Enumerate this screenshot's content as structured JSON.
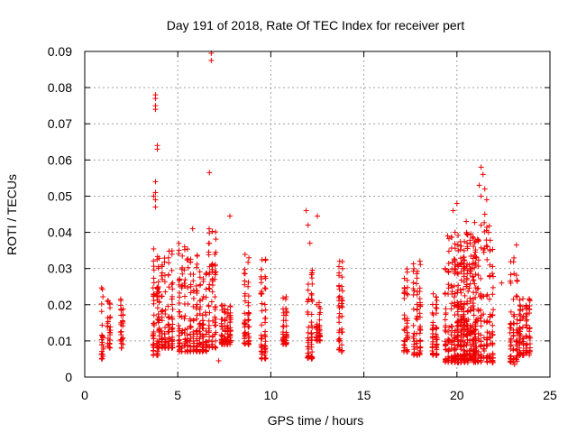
{
  "chart_data": {
    "type": "scatter",
    "title": "Day 191 of 2018, Rate Of TEC Index for receiver pert",
    "xlabel": "GPS time / hours",
    "ylabel": "ROTI / TECUs",
    "xlim": [
      0,
      25
    ],
    "ylim": [
      0,
      0.09
    ],
    "xticks": [
      0,
      5,
      10,
      15,
      20,
      25
    ],
    "yticks": [
      0,
      0.01,
      0.02,
      0.03,
      0.04,
      0.05,
      0.06,
      0.07,
      0.08,
      0.09
    ],
    "xtick_labels": [
      "0",
      "5",
      "10",
      "15",
      "20",
      "25"
    ],
    "ytick_labels": [
      "0",
      "0.01",
      "0.02",
      "0.03",
      "0.04",
      "0.05",
      "0.06",
      "0.07",
      "0.08",
      "0.09"
    ],
    "grid": true,
    "marker": "+",
    "color": "#ee0000",
    "clusters": [
      {
        "x": [
          0.9,
          1.0
        ],
        "y": [
          0.005,
          0.027
        ]
      },
      {
        "x": [
          1.2,
          1.4
        ],
        "y": [
          0.008,
          0.023
        ]
      },
      {
        "x": [
          1.9,
          2.1
        ],
        "y": [
          0.008,
          0.023
        ]
      },
      {
        "x": [
          3.6,
          4.0
        ],
        "y": [
          0.006,
          0.036
        ]
      },
      {
        "x": [
          3.9,
          4.4
        ],
        "y": [
          0.008,
          0.033
        ]
      },
      {
        "x": [
          4.4,
          4.8
        ],
        "y": [
          0.008,
          0.036
        ]
      },
      {
        "x": [
          5.0,
          5.6
        ],
        "y": [
          0.007,
          0.038
        ]
      },
      {
        "x": [
          5.6,
          6.1
        ],
        "y": [
          0.007,
          0.035
        ]
      },
      {
        "x": [
          6.1,
          6.6
        ],
        "y": [
          0.007,
          0.03
        ]
      },
      {
        "x": [
          6.6,
          7.1
        ],
        "y": [
          0.008,
          0.042
        ]
      },
      {
        "x": [
          7.3,
          7.9
        ],
        "y": [
          0.009,
          0.02
        ]
      },
      {
        "x": [
          8.5,
          8.9
        ],
        "y": [
          0.009,
          0.034
        ]
      },
      {
        "x": [
          9.4,
          9.8
        ],
        "y": [
          0.005,
          0.033
        ]
      },
      {
        "x": [
          10.6,
          10.9
        ],
        "y": [
          0.009,
          0.023
        ]
      },
      {
        "x": [
          11.9,
          12.3
        ],
        "y": [
          0.005,
          0.03
        ]
      },
      {
        "x": [
          12.4,
          12.7
        ],
        "y": [
          0.01,
          0.021
        ]
      },
      {
        "x": [
          13.6,
          13.9
        ],
        "y": [
          0.007,
          0.032
        ]
      },
      {
        "x": [
          17.1,
          17.4
        ],
        "y": [
          0.007,
          0.031
        ]
      },
      {
        "x": [
          17.6,
          18.1
        ],
        "y": [
          0.006,
          0.033
        ]
      },
      {
        "x": [
          18.6,
          19.0
        ],
        "y": [
          0.006,
          0.025
        ]
      },
      {
        "x": [
          19.3,
          21.0
        ],
        "y": [
          0.004,
          0.04
        ]
      },
      {
        "x": [
          19.8,
          21.1
        ],
        "y": [
          0.005,
          0.04
        ]
      },
      {
        "x": [
          20.9,
          22.0
        ],
        "y": [
          0.004,
          0.045
        ]
      },
      {
        "x": [
          22.8,
          23.3
        ],
        "y": [
          0.004,
          0.033
        ]
      },
      {
        "x": [
          23.3,
          24.0
        ],
        "y": [
          0.006,
          0.022
        ]
      }
    ],
    "outliers": [
      {
        "x": 3.8,
        "y": 0.078
      },
      {
        "x": 3.8,
        "y": 0.077
      },
      {
        "x": 3.8,
        "y": 0.075
      },
      {
        "x": 3.8,
        "y": 0.074
      },
      {
        "x": 3.9,
        "y": 0.064
      },
      {
        "x": 3.9,
        "y": 0.063
      },
      {
        "x": 3.8,
        "y": 0.054
      },
      {
        "x": 3.8,
        "y": 0.051
      },
      {
        "x": 3.7,
        "y": 0.05
      },
      {
        "x": 3.8,
        "y": 0.049
      },
      {
        "x": 3.8,
        "y": 0.047
      },
      {
        "x": 6.8,
        "y": 0.0895
      },
      {
        "x": 6.8,
        "y": 0.0875
      },
      {
        "x": 6.7,
        "y": 0.0565
      },
      {
        "x": 7.8,
        "y": 0.0445
      },
      {
        "x": 11.9,
        "y": 0.046
      },
      {
        "x": 12.0,
        "y": 0.042
      },
      {
        "x": 12.5,
        "y": 0.0445
      },
      {
        "x": 12.1,
        "y": 0.037
      },
      {
        "x": 13.7,
        "y": 0.032
      },
      {
        "x": 5.8,
        "y": 0.041
      },
      {
        "x": 7.2,
        "y": 0.0045
      },
      {
        "x": 20.0,
        "y": 0.048
      },
      {
        "x": 19.8,
        "y": 0.046
      },
      {
        "x": 19.5,
        "y": 0.039
      },
      {
        "x": 21.3,
        "y": 0.058
      },
      {
        "x": 21.4,
        "y": 0.056
      },
      {
        "x": 21.2,
        "y": 0.053
      },
      {
        "x": 21.5,
        "y": 0.052
      },
      {
        "x": 21.3,
        "y": 0.05
      },
      {
        "x": 21.6,
        "y": 0.049
      },
      {
        "x": 21.5,
        "y": 0.045
      },
      {
        "x": 21.7,
        "y": 0.04
      },
      {
        "x": 20.5,
        "y": 0.043
      },
      {
        "x": 21.0,
        "y": 0.0045
      },
      {
        "x": 23.1,
        "y": 0.0035
      },
      {
        "x": 23.2,
        "y": 0.0365
      },
      {
        "x": 22.4,
        "y": 0.026
      }
    ]
  }
}
